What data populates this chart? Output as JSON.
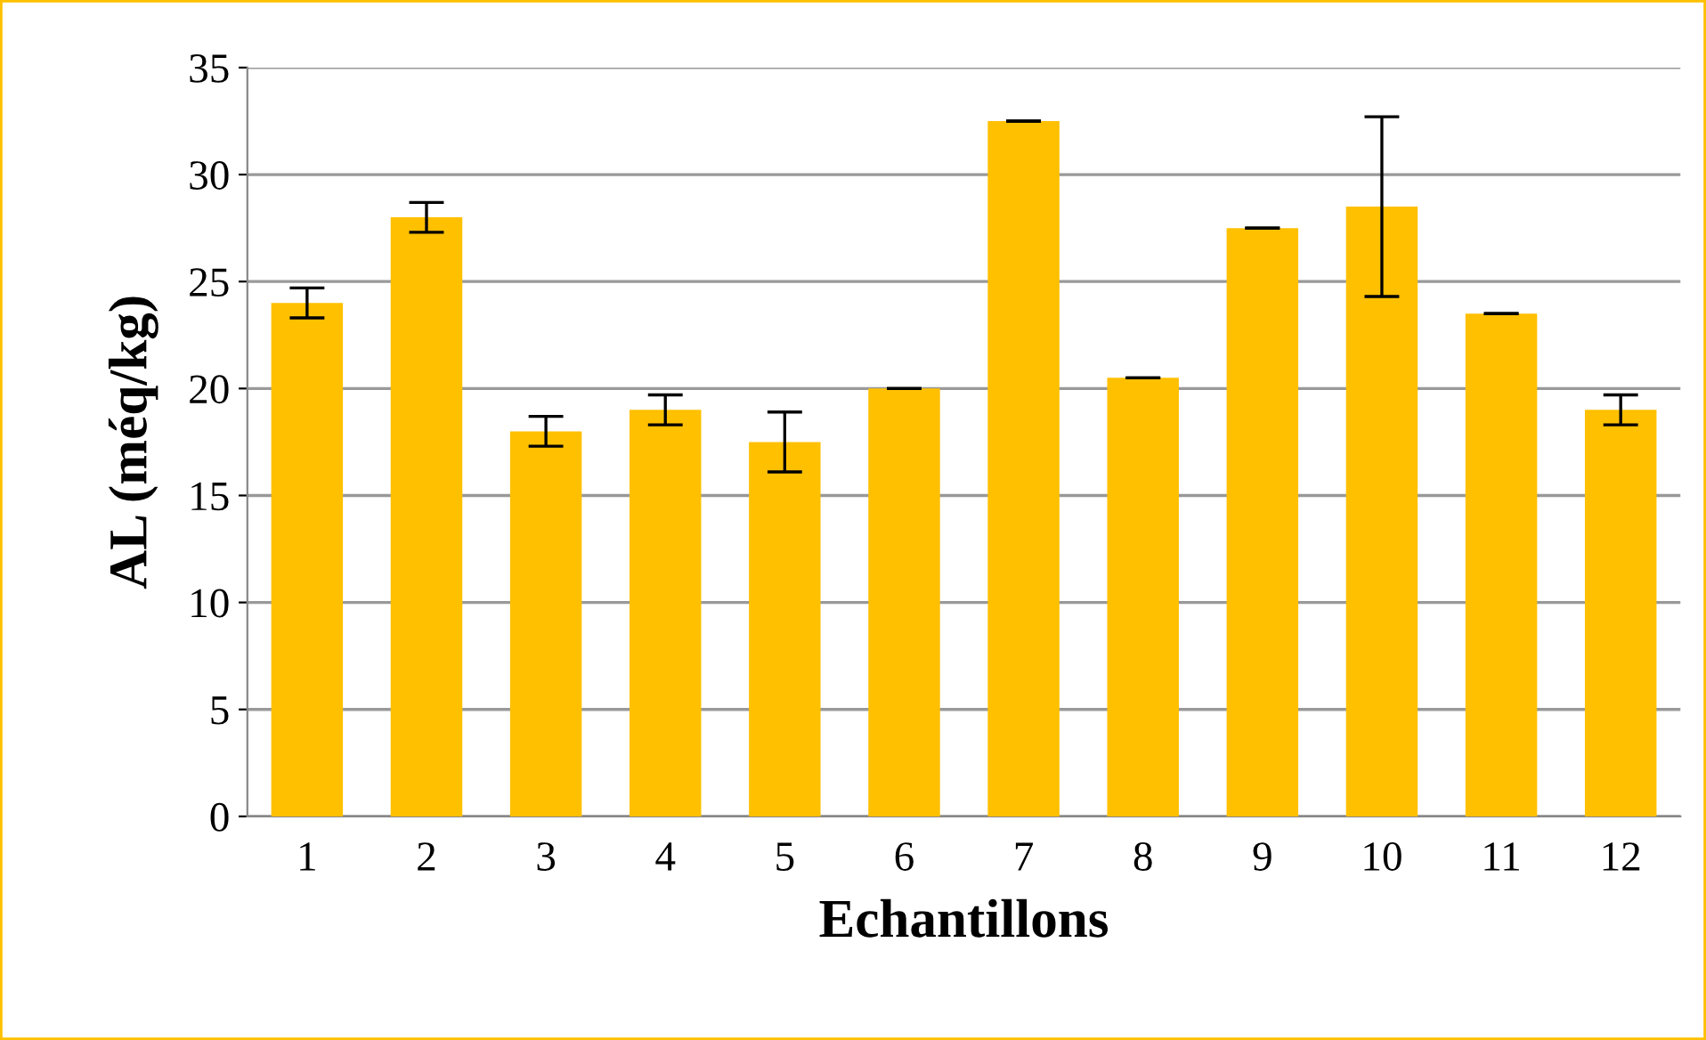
{
  "chart_data": {
    "type": "bar",
    "xlabel": "Echantillons",
    "ylabel": "AL (méq/kg)",
    "categories": [
      "1",
      "2",
      "3",
      "4",
      "5",
      "6",
      "7",
      "8",
      "9",
      "10",
      "11",
      "12"
    ],
    "values": [
      24,
      28,
      18,
      19,
      17.5,
      20,
      32.5,
      20.5,
      27.5,
      28.5,
      23.5,
      19
    ],
    "errors": [
      0.7,
      0.7,
      0.7,
      0.7,
      1.4,
      0,
      0,
      0,
      0,
      4.2,
      0,
      0.7
    ],
    "color": "#ffc000",
    "ylim": [
      0,
      35
    ],
    "yticks": [
      0,
      5,
      10,
      15,
      20,
      25,
      30,
      35
    ],
    "grid": "y"
  }
}
